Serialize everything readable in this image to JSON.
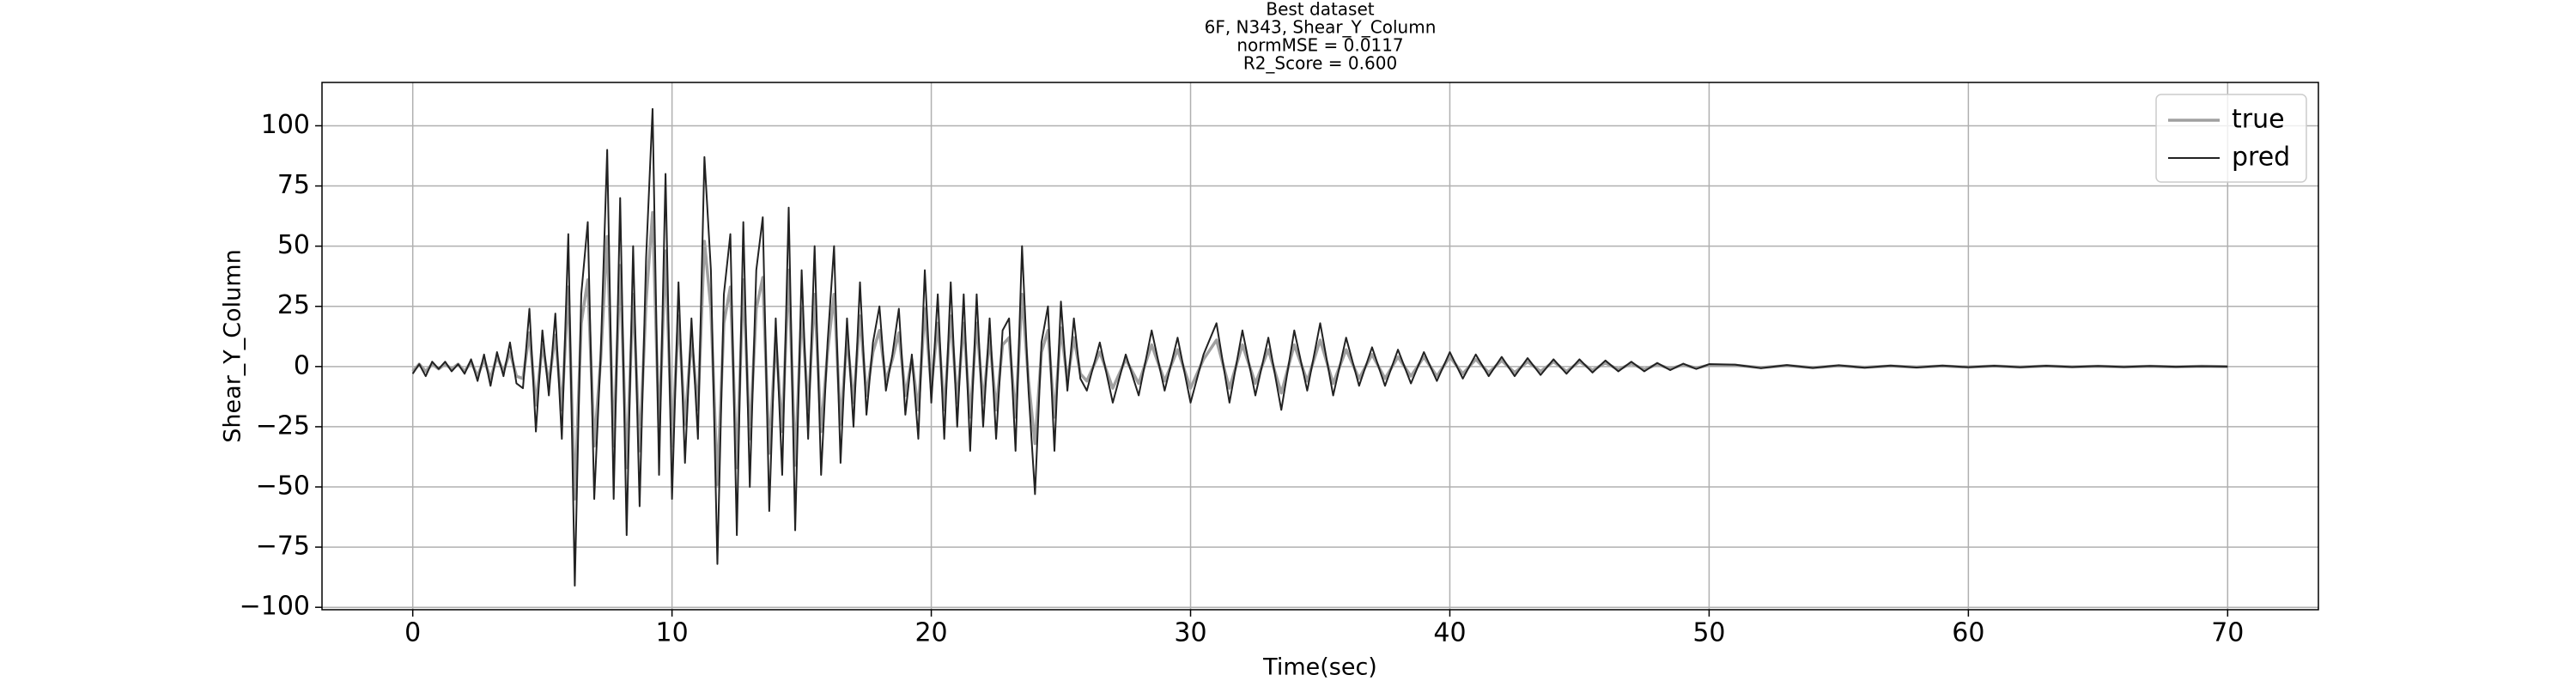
{
  "chart_data": {
    "type": "line",
    "title": [
      "Best dataset",
      "6F, N343, Shear_Y_Column",
      "normMSE = 0.0117",
      "R2_Score = 0.600"
    ],
    "xlabel": "Time(sec)",
    "ylabel": "Shear_Y_Column",
    "grid": true,
    "legend": "upper right",
    "xlim": [
      -3.5,
      73.5
    ],
    "ylim": [
      -101,
      118
    ],
    "xticks": [
      0,
      10,
      20,
      30,
      40,
      50,
      60,
      70
    ],
    "yticks": [
      {
        "value": -100,
        "label": "−100"
      },
      {
        "value": -75,
        "label": "−75"
      },
      {
        "value": -50,
        "label": "−50"
      },
      {
        "value": -25,
        "label": "−25"
      },
      0,
      25,
      50,
      75,
      100
    ],
    "x": [
      0,
      0.25,
      0.5,
      0.75,
      1,
      1.25,
      1.5,
      1.75,
      2,
      2.25,
      2.5,
      2.75,
      3,
      3.25,
      3.5,
      3.75,
      4,
      4.25,
      4.5,
      4.75,
      5,
      5.25,
      5.5,
      5.75,
      6,
      6.25,
      6.5,
      6.75,
      7,
      7.25,
      7.5,
      7.75,
      8,
      8.25,
      8.5,
      8.75,
      9,
      9.25,
      9.5,
      9.75,
      10,
      10.25,
      10.5,
      10.75,
      11,
      11.25,
      11.5,
      11.75,
      12,
      12.25,
      12.5,
      12.75,
      13,
      13.25,
      13.5,
      13.75,
      14,
      14.25,
      14.5,
      14.75,
      15,
      15.25,
      15.5,
      15.75,
      16,
      16.25,
      16.5,
      16.75,
      17,
      17.25,
      17.5,
      17.75,
      18,
      18.25,
      18.5,
      18.75,
      19,
      19.25,
      19.5,
      19.75,
      20,
      20.25,
      20.5,
      20.75,
      21,
      21.25,
      21.5,
      21.75,
      22,
      22.25,
      22.5,
      22.75,
      23,
      23.25,
      23.5,
      23.75,
      24,
      24.25,
      24.5,
      24.75,
      25,
      25.25,
      25.5,
      25.75,
      26,
      26.5,
      27,
      27.5,
      28,
      28.5,
      29,
      29.5,
      30,
      30.5,
      31,
      31.5,
      32,
      32.5,
      33,
      33.5,
      34,
      34.5,
      35,
      35.5,
      36,
      36.5,
      37,
      37.5,
      38,
      38.5,
      39,
      39.5,
      40,
      40.5,
      41,
      41.5,
      42,
      42.5,
      43,
      43.5,
      44,
      44.5,
      45,
      45.5,
      46,
      46.5,
      47,
      47.5,
      48,
      48.5,
      49,
      49.5,
      50,
      51,
      52,
      53,
      54,
      55,
      56,
      57,
      58,
      59,
      60,
      61,
      62,
      63,
      64,
      65,
      66,
      67,
      68,
      69,
      70
    ],
    "series": [
      {
        "name": "true",
        "color": "#a0a0a0",
        "values": [
          -2,
          1,
          -2,
          1,
          -1,
          1,
          -1,
          1,
          -2,
          2,
          -4,
          3,
          -5,
          4,
          -2,
          6,
          -4,
          -5,
          14,
          -16,
          9,
          -7,
          13,
          -18,
          33,
          -55,
          18,
          36,
          -33,
          3,
          54,
          -33,
          42,
          -42,
          30,
          -35,
          27,
          64,
          -27,
          48,
          -33,
          21,
          -24,
          12,
          -18,
          52,
          24,
          -49,
          18,
          33,
          -42,
          36,
          -30,
          24,
          37,
          -36,
          12,
          -27,
          40,
          -41,
          24,
          -18,
          30,
          -27,
          6,
          30,
          -24,
          12,
          -15,
          21,
          -12,
          6,
          15,
          -6,
          3,
          14,
          -12,
          3,
          -18,
          24,
          -9,
          18,
          -18,
          21,
          -15,
          18,
          -21,
          18,
          -15,
          12,
          -18,
          9,
          12,
          -21,
          30,
          -6,
          -32,
          6,
          15,
          -21,
          16,
          -6,
          12,
          -3,
          -6,
          6,
          -9,
          3,
          -7,
          9,
          -6,
          7,
          -9,
          3,
          11,
          -9,
          9,
          -7,
          7,
          -11,
          9,
          -6,
          11,
          -7,
          7,
          -5,
          5,
          -5,
          4,
          -4,
          4,
          -4,
          4,
          -3,
          3,
          -2.5,
          2.5,
          -2.5,
          2,
          -2,
          2,
          -2,
          2,
          -1.5,
          1.5,
          -1.2,
          1.2,
          -1.2,
          0.9,
          -0.9,
          0.7,
          -0.6,
          0.6,
          0.5,
          -0.4,
          0.4,
          -0.4,
          0.3,
          -0.3,
          0.2,
          -0.2,
          0.2,
          -0.2,
          0.2,
          -0.2,
          0.2,
          -0.1,
          0.1,
          -0.1,
          0.1,
          -0.1,
          0.1,
          0
        ]
      },
      {
        "name": "pred",
        "color": "#222222",
        "values": [
          -3,
          1,
          -4,
          2,
          -1,
          2,
          -2,
          1,
          -3,
          3,
          -6,
          5,
          -8,
          6,
          -4,
          10,
          -7,
          -9,
          24,
          -27,
          15,
          -12,
          22,
          -30,
          55,
          -91,
          30,
          60,
          -55,
          5,
          90,
          -55,
          70,
          -70,
          50,
          -58,
          45,
          107,
          -45,
          80,
          -55,
          35,
          -40,
          20,
          -30,
          87,
          40,
          -82,
          30,
          55,
          -70,
          60,
          -50,
          40,
          62,
          -60,
          20,
          -45,
          66,
          -68,
          40,
          -30,
          50,
          -45,
          10,
          50,
          -40,
          20,
          -25,
          35,
          -20,
          10,
          25,
          -10,
          5,
          24,
          -20,
          5,
          -30,
          40,
          -15,
          30,
          -30,
          35,
          -25,
          30,
          -35,
          30,
          -25,
          20,
          -30,
          15,
          20,
          -35,
          50,
          -10,
          -53,
          10,
          25,
          -35,
          27,
          -10,
          20,
          -5,
          -10,
          10,
          -15,
          5,
          -12,
          15,
          -10,
          12,
          -15,
          5,
          18,
          -15,
          15,
          -12,
          12,
          -18,
          15,
          -10,
          18,
          -12,
          12,
          -8,
          8,
          -8,
          7,
          -7,
          6,
          -6,
          6,
          -5,
          5,
          -4,
          4,
          -4,
          3.5,
          -3.5,
          3,
          -3,
          3,
          -2.5,
          2.5,
          -2,
          2,
          -2,
          1.5,
          -1.5,
          1.2,
          -1,
          1,
          0.8,
          -0.7,
          0.6,
          -0.6,
          0.5,
          -0.5,
          0.4,
          -0.4,
          0.4,
          -0.3,
          0.3,
          -0.3,
          0.3,
          -0.2,
          0.2,
          -0.2,
          0.2,
          -0.1,
          0.1,
          0
        ]
      }
    ]
  }
}
